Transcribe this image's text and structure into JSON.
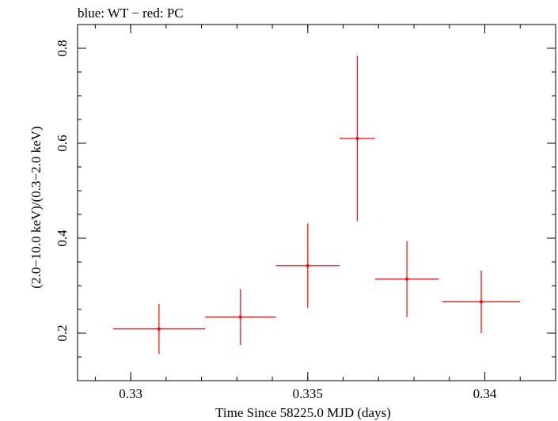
{
  "chart_data": {
    "type": "scatter",
    "title": "blue: WT − red: PC",
    "xlabel": "Time Since 58225.0 MJD (days)",
    "ylabel": "(2.0−10.0 keV)/(0.3−2.0 keV)",
    "xlim": [
      0.3285,
      0.342
    ],
    "ylim": [
      0.1,
      0.85
    ],
    "xticks": [
      0.33,
      0.335,
      0.34
    ],
    "yticks": [
      0.2,
      0.4,
      0.6,
      0.8
    ],
    "xtick_labels": [
      "0.33",
      "0.335",
      "0.34"
    ],
    "ytick_labels": [
      "0.2",
      "0.4",
      "0.6",
      "0.8"
    ],
    "grid": false,
    "series": [
      {
        "color": "#ff0000",
        "points": [
          {
            "x": 0.3308,
            "y": 0.209,
            "xerr": 0.0013,
            "yerr_low": 0.053,
            "yerr_high": 0.053
          },
          {
            "x": 0.3331,
            "y": 0.234,
            "xerr": 0.001,
            "yerr_low": 0.059,
            "yerr_high": 0.059
          },
          {
            "x": 0.335,
            "y": 0.342,
            "xerr": 0.0009,
            "yerr_low": 0.089,
            "yerr_high": 0.089
          },
          {
            "x": 0.3364,
            "y": 0.61,
            "xerr": 0.0005,
            "yerr_low": 0.174,
            "yerr_high": 0.174
          },
          {
            "x": 0.3378,
            "y": 0.314,
            "xerr": 0.0009,
            "yerr_low": 0.08,
            "yerr_high": 0.08
          },
          {
            "x": 0.3399,
            "y": 0.266,
            "xerr": 0.0011,
            "yerr_low": 0.066,
            "yerr_high": 0.066
          }
        ]
      }
    ]
  }
}
